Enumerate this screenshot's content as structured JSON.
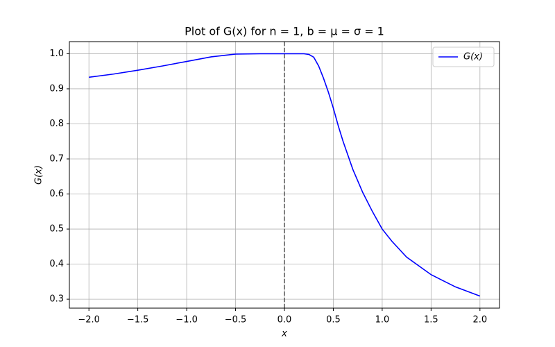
{
  "chart_data": {
    "type": "line",
    "title": "Plot of G(x) for n = 1, b = μ = σ = 1",
    "xlabel": "x",
    "ylabel": "G(x)",
    "x": [
      -2.0,
      -1.75,
      -1.5,
      -1.25,
      -1.0,
      -0.75,
      -0.5,
      -0.25,
      0,
      0.2,
      0.25,
      0.3,
      0.35,
      0.4,
      0.45,
      0.5,
      0.55,
      0.6,
      0.7,
      0.8,
      0.9,
      1.0,
      1.1,
      1.25,
      1.5,
      1.75,
      2.0
    ],
    "series": [
      {
        "name": "G(x)",
        "color": "#0000ff",
        "values": [
          0.933,
          0.942,
          0.953,
          0.965,
          0.978,
          0.991,
          0.999,
          1.0,
          1.0,
          1.0,
          0.998,
          0.99,
          0.965,
          0.93,
          0.89,
          0.845,
          0.795,
          0.75,
          0.67,
          0.605,
          0.55,
          0.5,
          0.465,
          0.42,
          0.37,
          0.335,
          0.309
        ]
      }
    ],
    "vline": 0,
    "xlim": [
      -2.2,
      2.2
    ],
    "ylim": [
      0.2745,
      1.0345
    ],
    "xticks": [
      {
        "value": -2.0,
        "label": "−2.0"
      },
      {
        "value": -1.5,
        "label": "−1.5"
      },
      {
        "value": -1.0,
        "label": "−1.0"
      },
      {
        "value": -0.5,
        "label": "−0.5"
      },
      {
        "value": 0,
        "label": "0.0"
      },
      0.5,
      {
        "value": 1,
        "label": "1.0"
      },
      1.5,
      {
        "value": 2,
        "label": "2.0"
      }
    ],
    "yticks": [
      0.3,
      0.4,
      0.5,
      0.6,
      0.7,
      0.8,
      0.9,
      {
        "value": 1,
        "label": "1.0"
      }
    ],
    "grid": true,
    "legend": "upper right"
  }
}
